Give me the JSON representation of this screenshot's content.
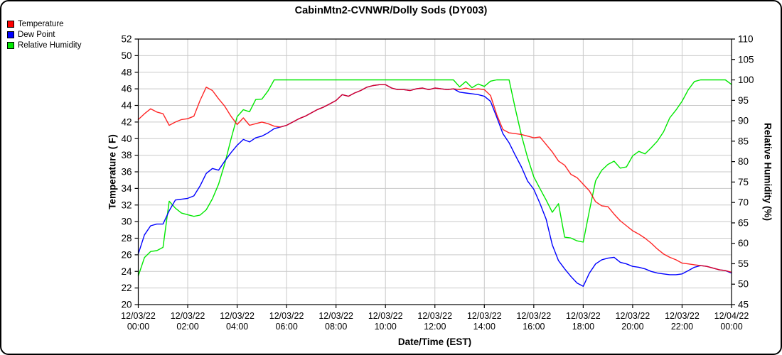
{
  "accent_colors": {
    "temperature": "#ff0000",
    "dew_point": "#0000ff",
    "relative_humidity": "#00e800",
    "grid": "#c9c9c9",
    "axis": "#000000"
  },
  "legend": {
    "items": [
      {
        "label": "Temperature",
        "color": "#ff0000"
      },
      {
        "label": "Dew Point",
        "color": "#0000ff"
      },
      {
        "label": "Relative Humidity",
        "color": "#00e800"
      }
    ]
  },
  "chart_data": {
    "type": "line",
    "title": "CabinMtn2-CVNWR/Dolly Sods (DY003)",
    "xlabel": "Date/Time (EST)",
    "ylabel_left": "Temperature ( F)",
    "ylabel_right": "Relative Humidity (%)",
    "grid": true,
    "legend_position": "top-left",
    "x_range": [
      0,
      24
    ],
    "x_step_hours": 0.25,
    "x_tick_interval_hours": 2,
    "x_tick_labels": [
      {
        "date": "12/03/22",
        "time": "00:00"
      },
      {
        "date": "12/03/22",
        "time": "02:00"
      },
      {
        "date": "12/03/22",
        "time": "04:00"
      },
      {
        "date": "12/03/22",
        "time": "06:00"
      },
      {
        "date": "12/03/22",
        "time": "08:00"
      },
      {
        "date": "12/03/22",
        "time": "10:00"
      },
      {
        "date": "12/03/22",
        "time": "12:00"
      },
      {
        "date": "12/03/22",
        "time": "14:00"
      },
      {
        "date": "12/03/22",
        "time": "16:00"
      },
      {
        "date": "12/03/22",
        "time": "18:00"
      },
      {
        "date": "12/03/22",
        "time": "20:00"
      },
      {
        "date": "12/03/22",
        "time": "22:00"
      },
      {
        "date": "12/04/22",
        "time": "00:00"
      }
    ],
    "y_left_range": [
      20,
      52
    ],
    "y_left_ticks": [
      52,
      50,
      48,
      46,
      44,
      42,
      40,
      38,
      36,
      34,
      32,
      30,
      28,
      26,
      24,
      22,
      20
    ],
    "y_right_range": [
      45,
      110
    ],
    "y_right_ticks": [
      110,
      105,
      100,
      95,
      90,
      85,
      80,
      75,
      70,
      65,
      60,
      55,
      50,
      45
    ],
    "series": [
      {
        "name": "Relative Humidity",
        "axis": "right",
        "color": "#00e800",
        "unit": "%",
        "values": [
          52.0,
          56.5,
          58.0,
          58.2,
          59.0,
          70.3,
          68.6,
          67.4,
          67.0,
          66.6,
          66.9,
          68.2,
          70.9,
          74.5,
          79.5,
          85.5,
          91.0,
          92.7,
          92.2,
          95.2,
          95.3,
          97.3,
          100.0,
          100.0,
          100.0,
          100.0,
          100.0,
          100.0,
          100.0,
          100.0,
          100.0,
          100.0,
          100.0,
          100.0,
          100.0,
          100.0,
          100.0,
          100.0,
          100.0,
          100.0,
          100.0,
          100.0,
          100.0,
          100.0,
          100.0,
          100.0,
          100.0,
          100.0,
          100.0,
          100.0,
          100.0,
          100.0,
          98.3,
          99.6,
          98.1,
          99.0,
          98.4,
          99.7,
          100.0,
          100.0,
          100.0,
          93.0,
          86.5,
          81.0,
          76.3,
          73.4,
          70.6,
          67.6,
          69.7,
          61.5,
          61.3,
          60.6,
          60.3,
          68.0,
          75.3,
          77.9,
          79.3,
          80.1,
          78.4,
          78.7,
          81.4,
          82.5,
          81.9,
          83.4,
          85.0,
          87.3,
          90.7,
          92.6,
          94.8,
          97.6,
          99.6,
          100.0,
          100.0,
          100.0,
          100.0,
          100.0,
          98.9
        ]
      },
      {
        "name": "Dew Point",
        "axis": "left",
        "color": "#0000ff",
        "unit": "F",
        "values": [
          26.1,
          28.4,
          29.5,
          29.7,
          29.7,
          31.3,
          32.6,
          32.7,
          32.8,
          33.1,
          34.3,
          35.8,
          36.4,
          36.2,
          37.3,
          38.3,
          39.2,
          39.9,
          39.6,
          40.1,
          40.3,
          40.7,
          41.2,
          41.4,
          41.6,
          42.0,
          42.4,
          42.7,
          43.1,
          43.5,
          43.8,
          44.2,
          44.6,
          45.3,
          45.1,
          45.5,
          45.8,
          46.2,
          46.4,
          46.5,
          46.5,
          46.1,
          45.9,
          45.9,
          45.8,
          46.0,
          46.1,
          45.9,
          46.1,
          46.0,
          45.9,
          46.0,
          45.6,
          45.5,
          45.4,
          45.3,
          45.1,
          44.5,
          42.6,
          40.6,
          39.5,
          38.0,
          36.6,
          34.9,
          33.9,
          32.2,
          30.3,
          27.2,
          25.3,
          24.3,
          23.4,
          22.6,
          22.2,
          23.8,
          24.9,
          25.4,
          25.6,
          25.7,
          25.1,
          24.9,
          24.6,
          24.5,
          24.3,
          24.0,
          23.8,
          23.7,
          23.6,
          23.6,
          23.7,
          24.1,
          24.5,
          24.7,
          24.6,
          24.4,
          24.2,
          24.1,
          23.8
        ]
      },
      {
        "name": "Temperature",
        "axis": "left",
        "color": "#ff0000",
        "unit": "F",
        "values": [
          42.3,
          43.0,
          43.6,
          43.2,
          43.0,
          41.6,
          42.0,
          42.3,
          42.4,
          42.7,
          44.6,
          46.2,
          45.8,
          44.8,
          43.9,
          42.7,
          41.7,
          42.5,
          41.6,
          41.8,
          42.0,
          41.8,
          41.5,
          41.4,
          41.6,
          42.0,
          42.4,
          42.7,
          43.1,
          43.5,
          43.8,
          44.2,
          44.6,
          45.3,
          45.1,
          45.5,
          45.8,
          46.2,
          46.4,
          46.5,
          46.5,
          46.1,
          45.9,
          45.9,
          45.8,
          46.0,
          46.1,
          45.9,
          46.1,
          46.0,
          45.9,
          46.0,
          45.9,
          46.1,
          45.9,
          46.0,
          45.9,
          45.2,
          42.9,
          41.1,
          40.7,
          40.6,
          40.5,
          40.3,
          40.1,
          40.2,
          39.3,
          38.4,
          37.3,
          36.8,
          35.7,
          35.3,
          34.5,
          33.7,
          32.4,
          31.9,
          31.8,
          30.9,
          30.1,
          29.5,
          28.9,
          28.5,
          28.0,
          27.4,
          26.7,
          26.1,
          25.7,
          25.4,
          25.0,
          24.9,
          24.8,
          24.7,
          24.6,
          24.4,
          24.2,
          24.1,
          23.9
        ]
      }
    ]
  }
}
